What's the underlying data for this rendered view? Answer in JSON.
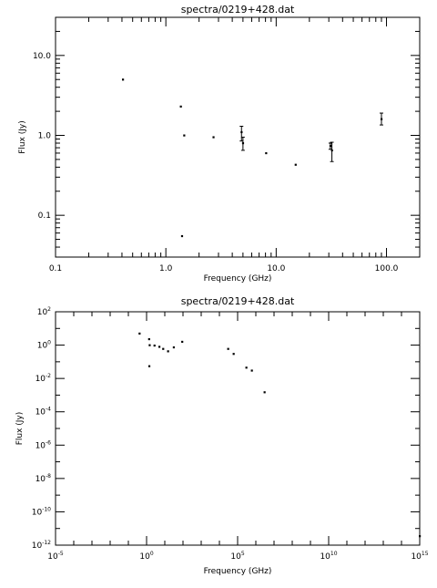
{
  "chart_data": [
    {
      "type": "scatter",
      "title": "spectra/0219+428.dat",
      "xlabel": "Frequency (GHz)",
      "ylabel": "Flux (Jy)",
      "xscale": "log",
      "yscale": "log",
      "xlim": [
        0.1,
        200
      ],
      "ylim": [
        0.03,
        30
      ],
      "xtick_values": [
        0.1,
        1,
        10,
        100
      ],
      "xtick_labels": [
        "0.1",
        "1.0",
        "10.0",
        "100.0"
      ],
      "ytick_values": [
        0.1,
        1,
        10
      ],
      "ytick_labels": [
        "0.1",
        "1.0",
        "10.0"
      ],
      "grid": false,
      "points": [
        {
          "x": 0.408,
          "y": 5.0
        },
        {
          "x": 1.365,
          "y": 2.3
        },
        {
          "x": 1.4,
          "y": 0.055
        },
        {
          "x": 1.465,
          "y": 1.0
        },
        {
          "x": 2.7,
          "y": 0.95
        },
        {
          "x": 4.85,
          "y": 1.1,
          "err": [
            0.85,
            1.3
          ]
        },
        {
          "x": 5.0,
          "y": 0.8,
          "err": [
            0.65,
            0.95
          ]
        },
        {
          "x": 8.1,
          "y": 0.6
        },
        {
          "x": 15.0,
          "y": 0.43
        },
        {
          "x": 31.0,
          "y": 0.74,
          "err": [
            0.67,
            0.8
          ]
        },
        {
          "x": 32.0,
          "y": 0.65,
          "err": [
            0.47,
            0.82
          ]
        },
        {
          "x": 90.0,
          "y": 1.6,
          "err": [
            1.35,
            1.9
          ]
        }
      ]
    },
    {
      "type": "scatter",
      "title": "spectra/0219+428.dat",
      "xlabel": "Frequency (GHz)",
      "ylabel": "Flux (Jy)",
      "xscale": "log",
      "yscale": "log",
      "xlim": [
        1e-05,
        1000000000000000
      ],
      "ylim": [
        1e-12,
        100
      ],
      "xtick_values": [
        1e-05,
        1,
        100000,
        10000000000,
        1000000000000000
      ],
      "xtick_bases": [
        "10",
        "10",
        "10",
        "10",
        "10"
      ],
      "xtick_exponents": [
        "-5",
        "0",
        "5",
        "10",
        "15"
      ],
      "ytick_values": [
        1e-12,
        1e-10,
        1e-08,
        1e-06,
        0.0001,
        0.01,
        1,
        100
      ],
      "ytick_bases": [
        "10",
        "10",
        "10",
        "10",
        "10",
        "10",
        "10",
        "10"
      ],
      "ytick_exponents": [
        "-12",
        "-10",
        "-8",
        "-6",
        "-4",
        "-2",
        "0",
        "2"
      ],
      "grid": false,
      "points": [
        {
          "x": 0.408,
          "y": 5.0
        },
        {
          "x": 1.365,
          "y": 2.3
        },
        {
          "x": 1.4,
          "y": 0.055
        },
        {
          "x": 1.465,
          "y": 1.0
        },
        {
          "x": 2.7,
          "y": 0.95
        },
        {
          "x": 5.0,
          "y": 0.8
        },
        {
          "x": 8.1,
          "y": 0.6
        },
        {
          "x": 15.0,
          "y": 0.43
        },
        {
          "x": 31.0,
          "y": 0.74
        },
        {
          "x": 90.0,
          "y": 1.6
        },
        {
          "x": 30000,
          "y": 0.6
        },
        {
          "x": 60000,
          "y": 0.3
        },
        {
          "x": 300000,
          "y": 0.045
        },
        {
          "x": 600000,
          "y": 0.03
        },
        {
          "x": 3000000,
          "y": 0.0015
        },
        {
          "x": 1000000000000000,
          "y": 3.5e-12
        }
      ]
    }
  ]
}
